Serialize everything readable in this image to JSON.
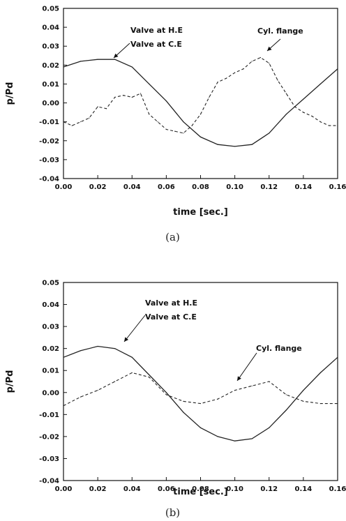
{
  "chart_data": [
    {
      "type": "line",
      "panel": "a",
      "caption": "(a)",
      "xlabel": "time [sec.]",
      "ylabel": "p/Pd",
      "xlim": [
        0.0,
        0.16
      ],
      "ylim": [
        -0.04,
        0.05
      ],
      "xticks": [
        "0.00",
        "0.02",
        "0.04",
        "0.06",
        "0.08",
        "0.10",
        "0.12",
        "0.14",
        "0.16"
      ],
      "yticks": [
        "-0.04",
        "-0.03",
        "-0.02",
        "-0.01",
        "0.00",
        "0.01",
        "0.02",
        "0.03",
        "0.04",
        "0.05"
      ],
      "annotations": [
        {
          "text": "Valve at H.E"
        },
        {
          "text": "Valve at C.E"
        },
        {
          "text": "Cyl. flange"
        }
      ],
      "series": [
        {
          "name": "Valve at H.E / Valve at C.E",
          "style": "solid",
          "x": [
            0.0,
            0.01,
            0.02,
            0.03,
            0.04,
            0.05,
            0.06,
            0.07,
            0.08,
            0.09,
            0.1,
            0.11,
            0.12,
            0.13,
            0.14,
            0.15,
            0.16
          ],
          "y": [
            0.019,
            0.022,
            0.023,
            0.023,
            0.019,
            0.01,
            0.001,
            -0.01,
            -0.018,
            -0.022,
            -0.023,
            -0.022,
            -0.016,
            -0.006,
            0.002,
            0.01,
            0.018
          ]
        },
        {
          "name": "Cyl. flange",
          "style": "dashed",
          "x": [
            0.0,
            0.005,
            0.01,
            0.015,
            0.02,
            0.025,
            0.03,
            0.035,
            0.04,
            0.045,
            0.05,
            0.055,
            0.06,
            0.065,
            0.07,
            0.075,
            0.08,
            0.085,
            0.09,
            0.095,
            0.1,
            0.105,
            0.11,
            0.115,
            0.12,
            0.125,
            0.13,
            0.135,
            0.14,
            0.145,
            0.15,
            0.155,
            0.16
          ],
          "y": [
            -0.01,
            -0.012,
            -0.01,
            -0.008,
            -0.002,
            -0.003,
            0.003,
            0.004,
            0.003,
            0.005,
            -0.006,
            -0.01,
            -0.014,
            -0.015,
            -0.016,
            -0.012,
            -0.006,
            0.003,
            0.011,
            0.013,
            0.016,
            0.018,
            0.022,
            0.024,
            0.021,
            0.012,
            0.005,
            -0.002,
            -0.005,
            -0.007,
            -0.01,
            -0.012,
            -0.012
          ]
        }
      ]
    },
    {
      "type": "line",
      "panel": "b",
      "caption": "(b)",
      "xlabel": "time [sec.]",
      "ylabel": "p/Pd",
      "xlim": [
        0.0,
        0.16
      ],
      "ylim": [
        -0.04,
        0.05
      ],
      "xticks": [
        "0.00",
        "0.02",
        "0.04",
        "0.06",
        "0.08",
        "0.10",
        "0.12",
        "0.14",
        "0.16"
      ],
      "yticks": [
        "-0.04",
        "-0.03",
        "-0.02",
        "-0.01",
        "0.00",
        "0.01",
        "0.02",
        "0.03",
        "0.04",
        "0.05"
      ],
      "annotations": [
        {
          "text": "Valve at H.E"
        },
        {
          "text": "Valve at C.E"
        },
        {
          "text": "Cyl. flange"
        }
      ],
      "series": [
        {
          "name": "Valve at H.E / Valve at C.E",
          "style": "solid",
          "x": [
            0.0,
            0.01,
            0.02,
            0.03,
            0.04,
            0.05,
            0.06,
            0.07,
            0.08,
            0.09,
            0.1,
            0.11,
            0.12,
            0.13,
            0.14,
            0.15,
            0.16
          ],
          "y": [
            0.016,
            0.019,
            0.021,
            0.02,
            0.016,
            0.008,
            0.0,
            -0.009,
            -0.016,
            -0.02,
            -0.022,
            -0.021,
            -0.016,
            -0.008,
            0.001,
            0.009,
            0.016
          ]
        },
        {
          "name": "Cyl. flange",
          "style": "dashed",
          "x": [
            0.0,
            0.01,
            0.02,
            0.03,
            0.04,
            0.05,
            0.06,
            0.07,
            0.08,
            0.09,
            0.1,
            0.11,
            0.12,
            0.13,
            0.14,
            0.15,
            0.16
          ],
          "y": [
            -0.006,
            -0.002,
            0.001,
            0.005,
            0.009,
            0.007,
            -0.001,
            -0.004,
            -0.005,
            -0.003,
            0.001,
            0.003,
            0.005,
            -0.001,
            -0.004,
            -0.005,
            -0.005
          ]
        }
      ]
    }
  ]
}
